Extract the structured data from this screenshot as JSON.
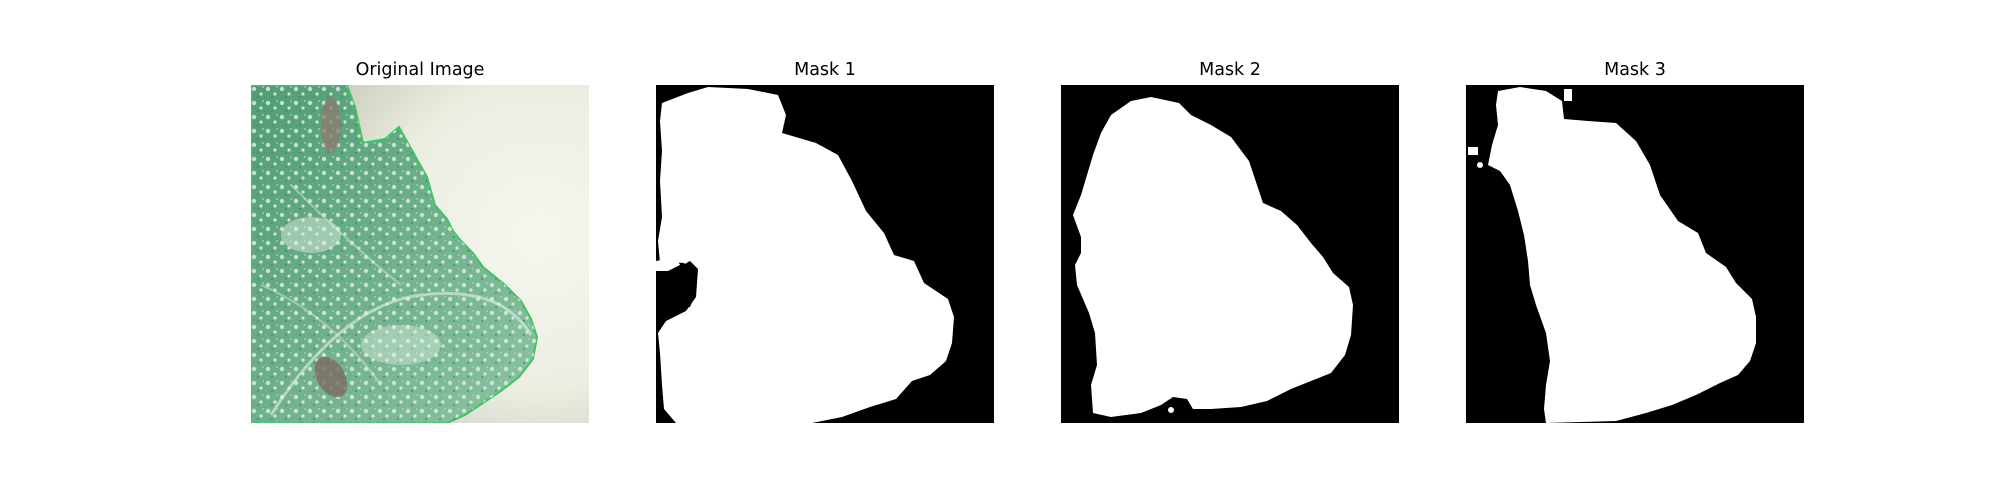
{
  "figure": {
    "panels": [
      {
        "title": "Original Image",
        "kind": "photo"
      },
      {
        "title": "Mask 1",
        "kind": "mask"
      },
      {
        "title": "Mask 2",
        "kind": "mask"
      },
      {
        "title": "Mask 3",
        "kind": "mask"
      }
    ]
  },
  "colors": {
    "leaf_green": "#5aa77e",
    "leaf_pale": "#cde5d2",
    "background_cream": "#ecede2",
    "mask_foreground": "#ffffff",
    "mask_background": "#000000"
  }
}
